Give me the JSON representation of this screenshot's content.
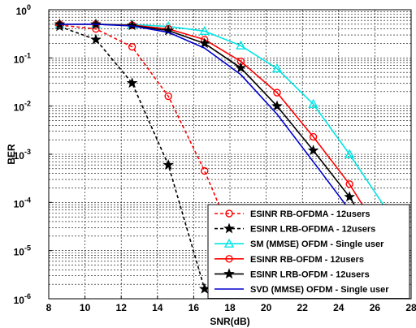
{
  "chart_data": {
    "type": "line",
    "xlabel": "SNR(dB)",
    "ylabel": "BER",
    "xlim": [
      8,
      28
    ],
    "ylim": [
      1e-06,
      1
    ],
    "yscale": "log",
    "grid": true,
    "legend_position": "bottom-right",
    "x_ticks": [
      "8",
      "10",
      "12",
      "14",
      "16",
      "18",
      "20",
      "22",
      "24",
      "26",
      "28"
    ],
    "y_ticks": [
      {
        "base": "10",
        "exp": "0"
      },
      {
        "base": "10",
        "exp": "-1"
      },
      {
        "base": "10",
        "exp": "-2"
      },
      {
        "base": "10",
        "exp": "-3"
      },
      {
        "base": "10",
        "exp": "-4"
      },
      {
        "base": "10",
        "exp": "-5"
      },
      {
        "base": "10",
        "exp": "-6"
      }
    ],
    "series": [
      {
        "name": "ESINR RB-OFDMA - 12users",
        "color": "#ff0000",
        "dash": "dashed",
        "marker": "circle",
        "x": [
          8.6,
          10.6,
          12.6,
          14.6,
          16.6,
          18.6
        ],
        "y": [
          0.48,
          0.4,
          0.17,
          0.016,
          0.00045,
          7.5e-06
        ]
      },
      {
        "name": "ESINR LRB-OFDMA - 12users",
        "color": "#000000",
        "dash": "dashed",
        "marker": "star",
        "x": [
          8.6,
          10.6,
          12.6,
          14.6,
          16.6
        ],
        "y": [
          0.45,
          0.24,
          0.03,
          0.0006,
          1.6e-06
        ]
      },
      {
        "name": "SM (MMSE) OFDM - Single user",
        "color": "#00e5e5",
        "dash": "solid",
        "marker": "triangle",
        "x": [
          8.6,
          10.6,
          12.6,
          14.6,
          16.6,
          18.6,
          20.6,
          22.6,
          24.6,
          26.6
        ],
        "y": [
          0.5,
          0.5,
          0.49,
          0.45,
          0.36,
          0.18,
          0.06,
          0.011,
          0.001,
          7.5e-05
        ]
      },
      {
        "name": "ESINR RB-OFDM - 12users",
        "color": "#ff0000",
        "dash": "solid",
        "marker": "circle",
        "x": [
          8.6,
          10.6,
          12.6,
          14.6,
          16.6,
          18.6,
          20.6,
          22.6,
          24.6,
          26.6
        ],
        "y": [
          0.5,
          0.5,
          0.48,
          0.4,
          0.24,
          0.085,
          0.019,
          0.0023,
          0.00024,
          1.5e-05
        ]
      },
      {
        "name": "ESINR LRB-OFDM - 12users",
        "color": "#000000",
        "dash": "solid",
        "marker": "star",
        "x": [
          8.6,
          10.6,
          12.6,
          14.6,
          16.6,
          18.6,
          20.6,
          22.6,
          24.6,
          26.6
        ],
        "y": [
          0.5,
          0.5,
          0.47,
          0.37,
          0.2,
          0.062,
          0.01,
          0.0012,
          0.00013,
          8.5e-06
        ]
      },
      {
        "name": "SVD (MMSE) OFDM - Single user",
        "color": "#0000cc",
        "dash": "solid",
        "marker": "none",
        "x": [
          8.6,
          10.6,
          12.6,
          14.6,
          16.6,
          18.6,
          20.6,
          22.6,
          24.6,
          26.6
        ],
        "y": [
          0.5,
          0.5,
          0.46,
          0.34,
          0.16,
          0.045,
          0.0068,
          0.0007,
          7e-05,
          4e-06
        ]
      }
    ]
  }
}
